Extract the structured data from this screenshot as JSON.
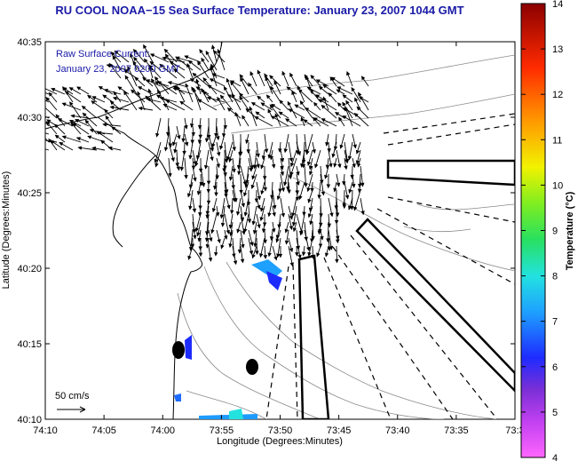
{
  "title": "RU COOL  NOAA−15  Sea Surface Temperature:  January 23, 2007 1044 GMT",
  "map": {
    "annotation_line1": "Raw Surface Current:",
    "annotation_line2": "January 23, 2007  0200 GMT",
    "x_axis_label": "Longitude (Degrees:Minutes)",
    "y_axis_label": "Latitude (Degrees:Minutes)",
    "x_ticks": [
      "74:10",
      "74:05",
      "74:00",
      "73:55",
      "73:50",
      "73:45",
      "73:40",
      "73:35",
      "73:3"
    ],
    "y_ticks": [
      "40:35",
      "40:30",
      "40:25",
      "40:20",
      "40:15",
      "40:10"
    ],
    "scale_label": "50 cm/s",
    "icons": [
      "current-vector-arrows",
      "coastline",
      "bathymetry-contours",
      "shipping-lanes"
    ]
  },
  "colorbar": {
    "title": "Temperature (°C)",
    "ticks": [
      "14",
      "13",
      "12",
      "11",
      "10",
      "9",
      "8",
      "7",
      "6",
      "5",
      "4"
    ],
    "range": [
      4,
      14
    ],
    "colors": [
      "#ff66ff",
      "#7a2fd6",
      "#1e2bff",
      "#1ea0ff",
      "#22e2e0",
      "#28e060",
      "#a8f020",
      "#f2f200",
      "#ff9a00",
      "#ff2a00",
      "#8b0000"
    ]
  }
}
